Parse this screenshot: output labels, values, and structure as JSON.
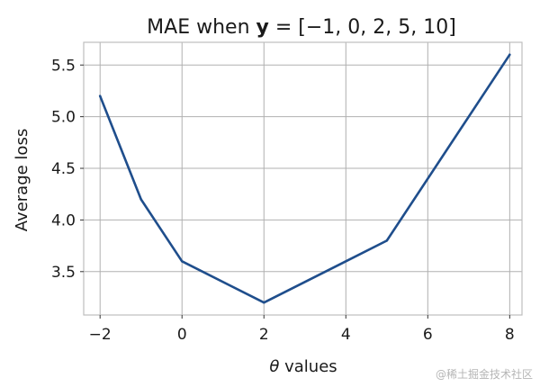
{
  "chart_data": {
    "type": "line",
    "title": {
      "prefix": "MAE when ",
      "bold_symbol": "y",
      "suffix": " = [−1, 0, 2, 5, 10]"
    },
    "xlabel": {
      "symbol": "θ",
      "text": " values"
    },
    "ylabel": "Average loss",
    "xlim": [
      -2.4,
      8.3
    ],
    "ylim": [
      3.08,
      5.72
    ],
    "xticks": [
      -2,
      0,
      2,
      4,
      6,
      8
    ],
    "xtick_labels": [
      "−2",
      "0",
      "2",
      "4",
      "6",
      "8"
    ],
    "yticks": [
      3.5,
      4.0,
      4.5,
      5.0,
      5.5
    ],
    "ytick_labels": [
      "3.5",
      "4.0",
      "4.5",
      "5.0",
      "5.5"
    ],
    "grid": true,
    "series": [
      {
        "color": "#1f4e8c",
        "x": [
          -2,
          -1,
          0,
          2,
          5,
          8
        ],
        "y": [
          5.2,
          4.2,
          3.6,
          3.2,
          3.8,
          5.6
        ]
      }
    ]
  },
  "watermark": "@稀土掘金技术社区"
}
